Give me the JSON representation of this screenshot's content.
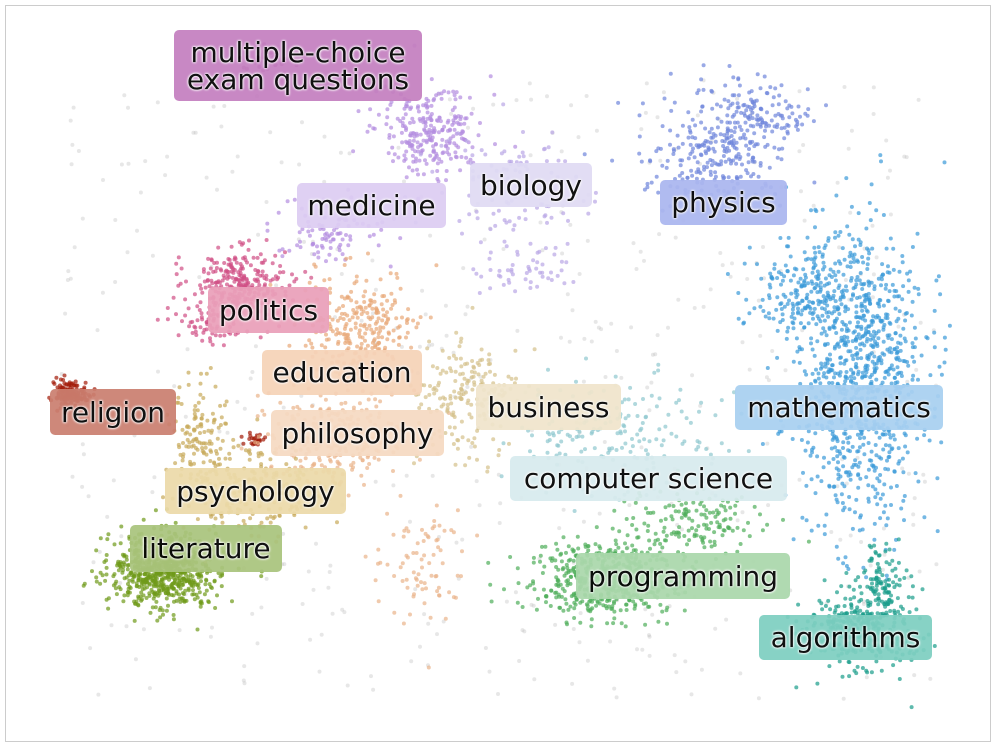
{
  "clusters": [
    {
      "label": "multiple-choice exam questions",
      "color": "#c47fc0",
      "point_color": "#a3398f"
    },
    {
      "label": "medicine",
      "color": "#ddcdf3",
      "point_color": "#b48de0"
    },
    {
      "label": "biology",
      "color": "#e0dbf4",
      "point_color": "#b9a6e6"
    },
    {
      "label": "physics",
      "color": "#abb6ef",
      "point_color": "#6f86dc"
    },
    {
      "label": "politics",
      "color": "#eaa0ba",
      "point_color": "#d04e85"
    },
    {
      "label": "education",
      "color": "#f6d3b8",
      "point_color": "#e8a878"
    },
    {
      "label": "religion",
      "color": "#cb7f70",
      "point_color": "#a31b08"
    },
    {
      "label": "philosophy",
      "color": "#f6dac2",
      "point_color": "#e9b48a"
    },
    {
      "label": "business",
      "color": "#f0e5cc",
      "point_color": "#d4c08a"
    },
    {
      "label": "mathematics",
      "color": "#a8d0f1",
      "point_color": "#3a9ad8"
    },
    {
      "label": "computer science",
      "color": "#d8ebee",
      "point_color": "#8fc8cf"
    },
    {
      "label": "psychology",
      "color": "#ecdaa9",
      "point_color": "#c8aa5a"
    },
    {
      "label": "literature",
      "color": "#aac47d",
      "point_color": "#6f9a1a"
    },
    {
      "label": "programming",
      "color": "#abd8ac",
      "point_color": "#4fae5a"
    },
    {
      "label": "algorithms",
      "color": "#7ecfc1",
      "point_color": "#1a9c8a"
    }
  ]
}
